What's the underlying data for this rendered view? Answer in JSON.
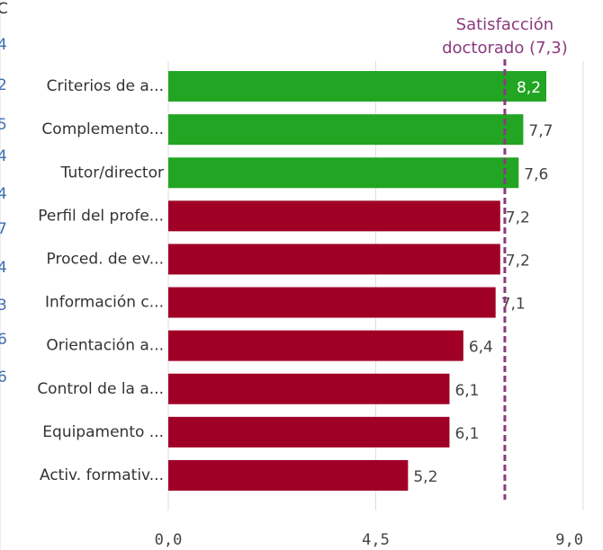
{
  "chart_data": {
    "type": "bar",
    "orientation": "horizontal",
    "categories": [
      "Criterios de a...",
      "Complemento...",
      "Tutor/director",
      "Perfil del profe...",
      "Proced. de ev...",
      "Información c...",
      "Orientación a...",
      "Control de la a...",
      "Equipamento ...",
      "Activ. formativ..."
    ],
    "values": [
      8.2,
      7.7,
      7.6,
      7.2,
      7.2,
      7.1,
      6.4,
      6.1,
      6.1,
      5.2
    ],
    "value_labels": [
      "8,2",
      "7,7",
      "7,6",
      "7,2",
      "7,2",
      "7,1",
      "6,4",
      "6,1",
      "6,1",
      "5,2"
    ],
    "colors": [
      "#22a523",
      "#22a523",
      "#22a523",
      "#a00026",
      "#a00026",
      "#a00026",
      "#a00026",
      "#a00026",
      "#a00026",
      "#a00026"
    ],
    "xlim": [
      0,
      9.0
    ],
    "xticks": [
      {
        "value": 0,
        "label": "0,0"
      },
      {
        "value": 4.5,
        "label": "4,5"
      },
      {
        "value": 9.0,
        "label": "9,0"
      }
    ],
    "grid": true,
    "reference_line": {
      "value": 7.3,
      "label_lines": [
        "Satisfacción",
        "doctorado (7,3)"
      ],
      "color": "#8b3a7f"
    },
    "cropped_left_texts": [
      "C",
      "4",
      "2",
      "5",
      "4",
      "4",
      "7",
      "4",
      "3",
      "6",
      "6"
    ]
  }
}
